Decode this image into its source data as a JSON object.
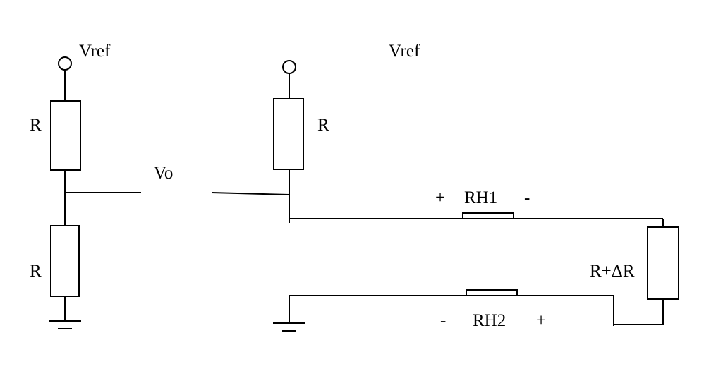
{
  "left_divider": {
    "supply_label": "Vref",
    "top_resistor_label": "R",
    "bottom_resistor_label": "R",
    "output_label": "Vo"
  },
  "right_bridge": {
    "supply_label": "Vref",
    "top_resistor_label": "R",
    "sensor_label": "R+ΔR",
    "lead_top": {
      "label": "RH1",
      "left_sign": "+",
      "right_sign": "-"
    },
    "lead_bottom": {
      "label": "RH2",
      "left_sign": "-",
      "right_sign": "+"
    }
  },
  "colors": {
    "stroke": "#000000",
    "background": "#ffffff"
  }
}
